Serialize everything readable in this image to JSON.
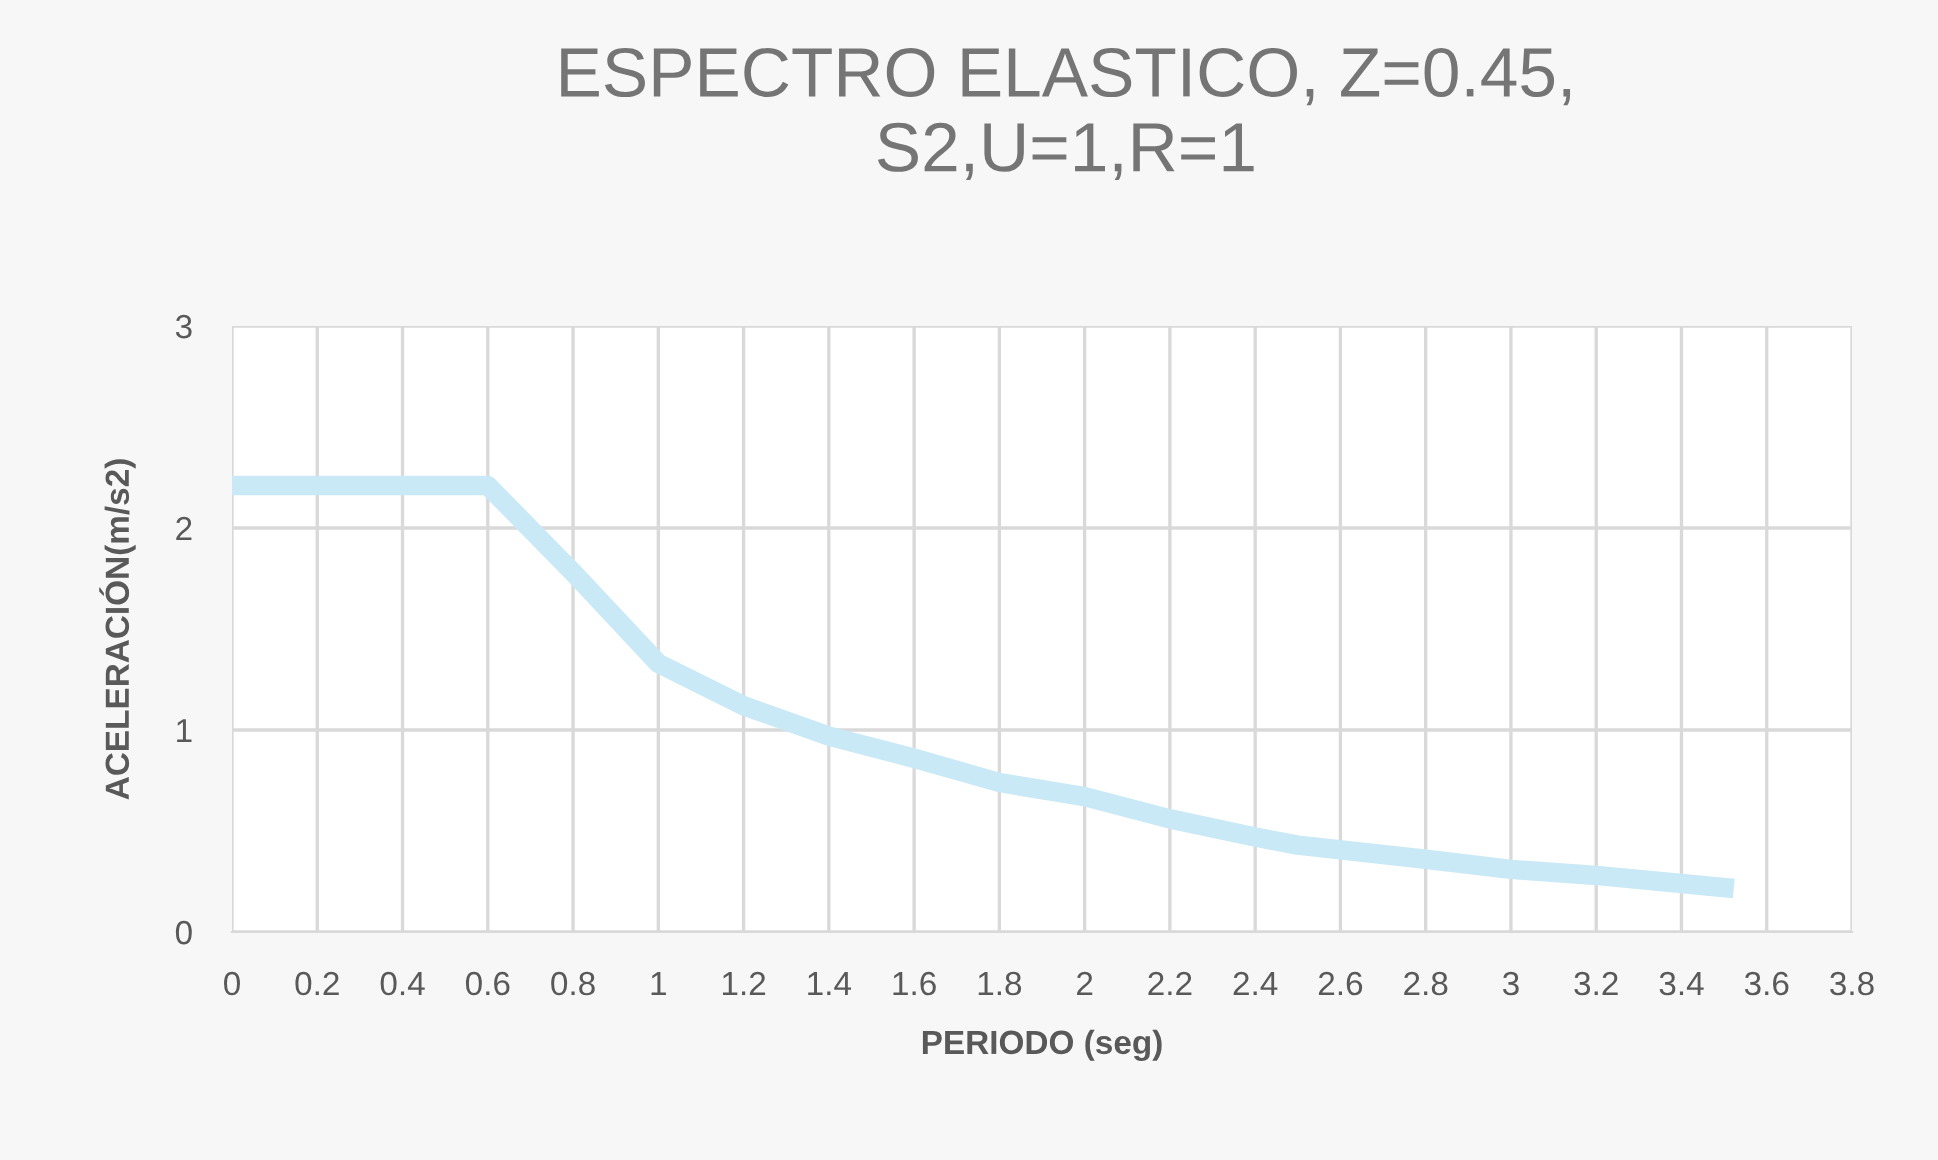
{
  "chart_data": {
    "type": "line",
    "title": "ESPECTRO ELASTICO, Z=0.45,\nS2,U=1,R=1",
    "xlabel": "PERIODO (seg)",
    "ylabel": "ACELERACIÓN(m/s2)",
    "series": [
      {
        "color": "#c9e9f6",
        "x": [
          0,
          0.2,
          0.4,
          0.6,
          0.8,
          1.0,
          1.2,
          1.4,
          1.6,
          1.8,
          2.0,
          2.2,
          2.4,
          2.5,
          2.8,
          3.0,
          3.2,
          3.4,
          3.5
        ],
        "values": [
          2.21,
          2.21,
          2.21,
          2.21,
          1.78,
          1.33,
          1.12,
          0.97,
          0.86,
          0.74,
          0.67,
          0.56,
          0.47,
          0.43,
          0.36,
          0.31,
          0.28,
          0.24,
          0.22
        ]
      }
    ],
    "xlim": [
      0,
      3.8
    ],
    "xticks": [
      0,
      0.2,
      0.4,
      0.6,
      0.8,
      1,
      1.2,
      1.4,
      1.6,
      1.8,
      2,
      2.2,
      2.4,
      2.6,
      2.8,
      3,
      3.2,
      3.4,
      3.6,
      3.8
    ],
    "ylim": [
      0,
      3
    ],
    "yticks": [
      0,
      1,
      2,
      3
    ],
    "grid": true,
    "legend": false,
    "line_style": "solid",
    "marker": "none"
  }
}
